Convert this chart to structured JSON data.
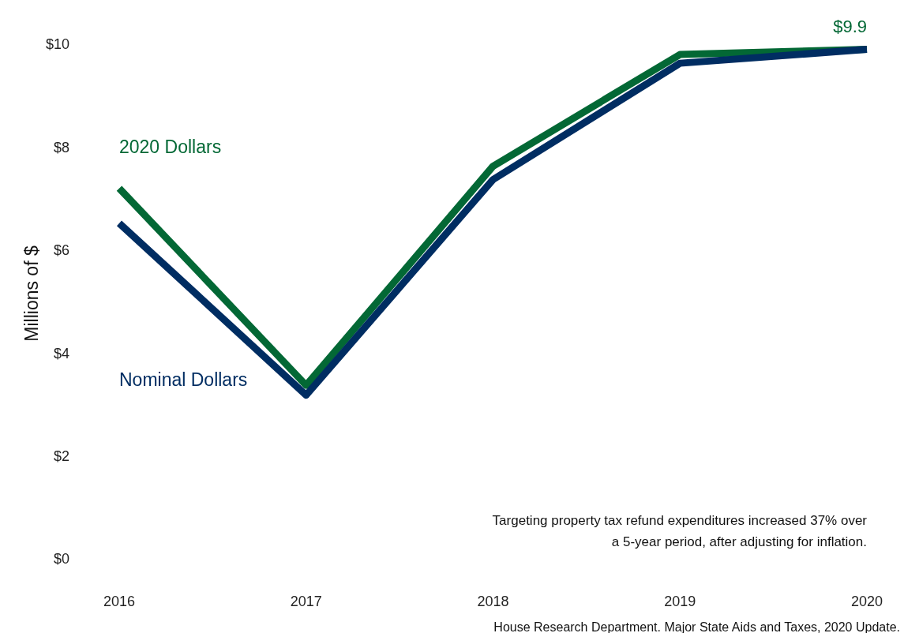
{
  "chart_data": {
    "type": "line",
    "categories": [
      "2016",
      "2017",
      "2018",
      "2019",
      "2020"
    ],
    "series": [
      {
        "name": "2020 Dollars",
        "color": "#036835",
        "values": [
          7.2,
          3.37,
          7.63,
          9.8,
          9.9
        ],
        "value_labels": [
          null,
          null,
          null,
          null,
          "$9.9"
        ]
      },
      {
        "name": "Nominal Dollars",
        "color": "#002d62",
        "values": [
          6.52,
          3.18,
          7.37,
          9.63,
          9.9
        ]
      }
    ],
    "ylabel": "Millions of $",
    "ylim": [
      0,
      10
    ],
    "yticks": [
      {
        "value": 0,
        "label": "$0"
      },
      {
        "value": 2,
        "label": "$2"
      },
      {
        "value": 4,
        "label": "$4"
      },
      {
        "value": 6,
        "label": "$6"
      },
      {
        "value": 8,
        "label": "$8"
      },
      {
        "value": 10,
        "label": "$10"
      }
    ],
    "grid": false,
    "legend": false,
    "marker": "none",
    "line_style": "solid",
    "annotations": [
      "Targeting property tax refund expenditures increased 37% over a 5-year period, after adjusting for inflation.",
      "House Research Department. Major State Aids and Taxes, 2020 Update."
    ]
  }
}
